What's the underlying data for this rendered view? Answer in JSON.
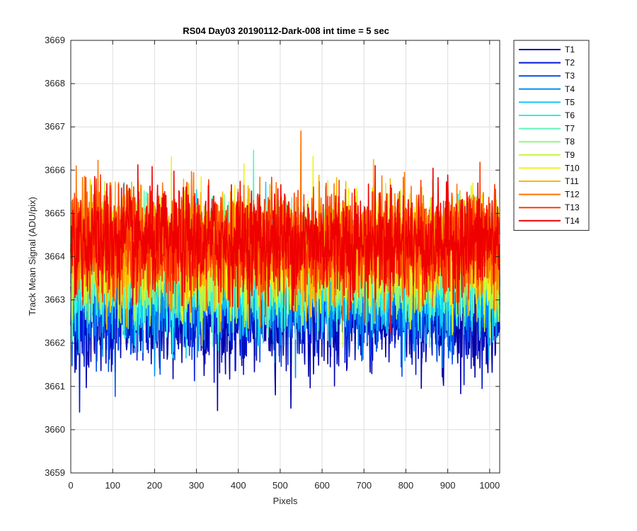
{
  "chart_data": {
    "type": "line",
    "title": "RS04 Day03 20190112-Dark-008 int time = 5 sec",
    "xlabel": "Pixels",
    "ylabel": "Track Mean Signal (ADU/pix)",
    "xlim": [
      0,
      1024
    ],
    "ylim": [
      3659,
      3669
    ],
    "xticks": [
      0,
      100,
      200,
      300,
      400,
      500,
      600,
      700,
      800,
      900,
      1000
    ],
    "yticks": [
      3659,
      3660,
      3661,
      3662,
      3663,
      3664,
      3665,
      3666,
      3667,
      3668,
      3669
    ],
    "grid": true,
    "legend_position": "outside-top-right",
    "x_points": 1024,
    "series": [
      {
        "name": "T1",
        "color": "#0000a8",
        "mean": 3662.6,
        "noise": 0.62
      },
      {
        "name": "T2",
        "color": "#0016d6",
        "mean": 3662.9,
        "noise": 0.62
      },
      {
        "name": "T3",
        "color": "#0050ee",
        "mean": 3663.1,
        "noise": 0.62
      },
      {
        "name": "T4",
        "color": "#0090f5",
        "mean": 3663.3,
        "noise": 0.62
      },
      {
        "name": "T5",
        "color": "#12c8f8",
        "mean": 3663.5,
        "noise": 0.62
      },
      {
        "name": "T6",
        "color": "#28f2e4",
        "mean": 3663.6,
        "noise": 0.62
      },
      {
        "name": "T7",
        "color": "#5ef5bd",
        "mean": 3663.8,
        "noise": 0.62
      },
      {
        "name": "T8",
        "color": "#90f87c",
        "mean": 3663.9,
        "noise": 0.62
      },
      {
        "name": "T9",
        "color": "#c6f53c",
        "mean": 3664.0,
        "noise": 0.62
      },
      {
        "name": "T10",
        "color": "#f2f214",
        "mean": 3664.1,
        "noise": 0.62
      },
      {
        "name": "T11",
        "color": "#f8b800",
        "mean": 3664.2,
        "noise": 0.62
      },
      {
        "name": "T12",
        "color": "#ff7400",
        "mean": 3664.25,
        "noise": 0.62
      },
      {
        "name": "T13",
        "color": "#ff3a00",
        "mean": 3664.3,
        "noise": 0.62
      },
      {
        "name": "T14",
        "color": "#ee0000",
        "mean": 3664.35,
        "noise": 0.62
      }
    ]
  }
}
